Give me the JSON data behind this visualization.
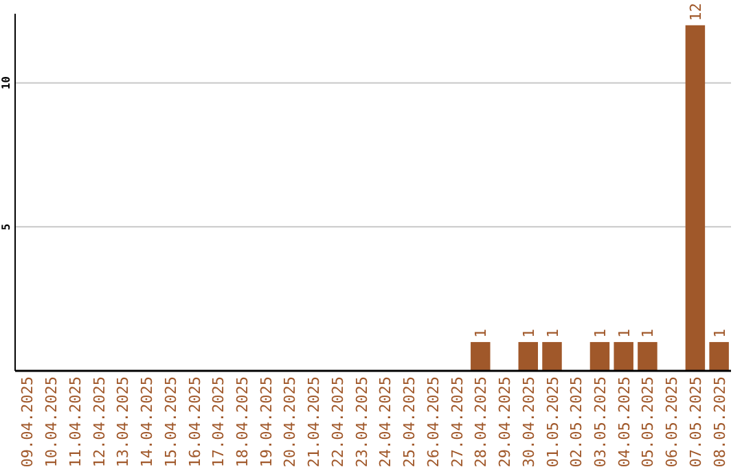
{
  "chart_data": {
    "type": "bar",
    "categories": [
      "09.04.2025",
      "10.04.2025",
      "11.04.2025",
      "12.04.2025",
      "13.04.2025",
      "14.04.2025",
      "15.04.2025",
      "16.04.2025",
      "17.04.2025",
      "18.04.2025",
      "19.04.2025",
      "20.04.2025",
      "21.04.2025",
      "22.04.2025",
      "23.04.2025",
      "24.04.2025",
      "25.04.2025",
      "26.04.2025",
      "27.04.2025",
      "28.04.2025",
      "29.04.2025",
      "30.04.2025",
      "01.05.2025",
      "02.05.2025",
      "03.05.2025",
      "04.05.2025",
      "05.05.2025",
      "06.05.2025",
      "07.05.2025",
      "08.05.2025"
    ],
    "values": [
      0,
      0,
      0,
      0,
      0,
      0,
      0,
      0,
      0,
      0,
      0,
      0,
      0,
      0,
      0,
      0,
      0,
      0,
      0,
      1,
      0,
      1,
      1,
      0,
      1,
      1,
      1,
      0,
      12,
      1
    ],
    "value_labels": [
      null,
      null,
      null,
      null,
      null,
      null,
      null,
      null,
      null,
      null,
      null,
      null,
      null,
      null,
      null,
      null,
      null,
      null,
      null,
      "1",
      null,
      "1",
      "1",
      null,
      "1",
      "1",
      "1",
      null,
      "12",
      "1"
    ],
    "color": "#a0582a",
    "ylim": [
      0,
      12.4
    ],
    "yticks": [
      5,
      10
    ],
    "grid": "y"
  }
}
